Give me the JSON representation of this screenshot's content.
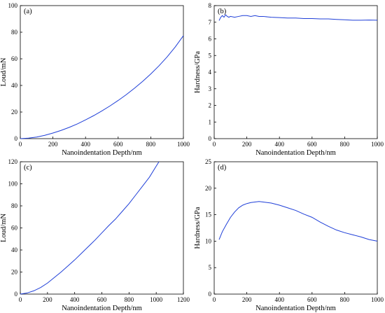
{
  "chart_data": [
    {
      "type": "line",
      "panel": "(a)",
      "xlabel": "Nanoindentation Depth/nm",
      "ylabel": "Loud/mN",
      "xlim": [
        0,
        1000
      ],
      "ylim": [
        0,
        100
      ],
      "xticks": [
        0,
        200,
        400,
        600,
        800,
        1000
      ],
      "yticks": [
        0,
        20,
        40,
        60,
        80,
        100
      ],
      "series": [
        {
          "color": "#1f3fd8",
          "x": [
            0,
            50,
            100,
            150,
            200,
            250,
            300,
            350,
            400,
            450,
            500,
            550,
            600,
            650,
            700,
            750,
            800,
            850,
            900,
            950,
            1000
          ],
          "y": [
            0,
            0.4,
            1.2,
            2.5,
            4.2,
            6.2,
            8.5,
            11.1,
            14.1,
            17.3,
            20.8,
            24.6,
            28.7,
            33.1,
            37.9,
            43.0,
            48.6,
            54.7,
            61.4,
            68.9,
            77.4
          ]
        }
      ]
    },
    {
      "type": "line",
      "panel": "(b)",
      "xlabel": "Nanoindentation Depth/nm",
      "ylabel": "Hardness/GPa",
      "xlim": [
        0,
        1000
      ],
      "ylim": [
        0,
        8
      ],
      "xticks": [
        0,
        200,
        400,
        600,
        800,
        1000
      ],
      "yticks": [
        0,
        1,
        2,
        3,
        4,
        5,
        6,
        7,
        8
      ],
      "series": [
        {
          "color": "#1f3fd8",
          "x": [
            30,
            40,
            50,
            60,
            70,
            80,
            90,
            100,
            125,
            150,
            175,
            200,
            225,
            250,
            275,
            300,
            350,
            400,
            450,
            500,
            550,
            600,
            650,
            700,
            750,
            800,
            850,
            900,
            950,
            1000
          ],
          "y": [
            7.1,
            7.3,
            7.4,
            7.3,
            7.45,
            7.35,
            7.3,
            7.35,
            7.3,
            7.35,
            7.4,
            7.4,
            7.35,
            7.4,
            7.35,
            7.35,
            7.3,
            7.28,
            7.25,
            7.25,
            7.22,
            7.22,
            7.2,
            7.2,
            7.17,
            7.15,
            7.12,
            7.12,
            7.13,
            7.12
          ]
        }
      ]
    },
    {
      "type": "line",
      "panel": "(c)",
      "xlabel": "Nanoindentation Depth/nm",
      "ylabel": "Loud/mN",
      "xlim": [
        0,
        1200
      ],
      "ylim": [
        0,
        120
      ],
      "xticks": [
        0,
        200,
        400,
        600,
        800,
        1000,
        1200
      ],
      "yticks": [
        0,
        20,
        40,
        60,
        80,
        100,
        120
      ],
      "series": [
        {
          "color": "#1f3fd8",
          "x": [
            0,
            50,
            100,
            150,
            200,
            250,
            300,
            350,
            400,
            450,
            500,
            550,
            600,
            650,
            700,
            750,
            800,
            850,
            900,
            950,
            1000,
            1020
          ],
          "y": [
            0,
            1,
            3,
            6,
            10,
            15,
            20,
            25.5,
            31,
            37,
            43,
            49,
            55.5,
            62,
            68,
            75,
            82,
            90,
            98,
            106,
            116,
            120
          ]
        }
      ]
    },
    {
      "type": "line",
      "panel": "(d)",
      "xlabel": "Nanoindentation Depth/nm",
      "ylabel": "Hardness/GPa",
      "xlim": [
        0,
        1000
      ],
      "ylim": [
        0,
        25
      ],
      "xticks": [
        0,
        200,
        400,
        600,
        800,
        1000
      ],
      "yticks": [
        0,
        5,
        10,
        15,
        20,
        25
      ],
      "series": [
        {
          "color": "#1f3fd8",
          "x": [
            30,
            50,
            75,
            100,
            125,
            150,
            175,
            200,
            225,
            250,
            275,
            300,
            325,
            350,
            400,
            450,
            500,
            550,
            600,
            650,
            700,
            750,
            800,
            850,
            900,
            950,
            1000
          ],
          "y": [
            10.3,
            11.8,
            13.2,
            14.5,
            15.5,
            16.3,
            16.8,
            17.1,
            17.3,
            17.4,
            17.5,
            17.4,
            17.3,
            17.2,
            16.8,
            16.3,
            15.8,
            15.1,
            14.5,
            13.6,
            12.8,
            12.1,
            11.6,
            11.2,
            10.8,
            10.3,
            10.0
          ]
        }
      ]
    }
  ]
}
